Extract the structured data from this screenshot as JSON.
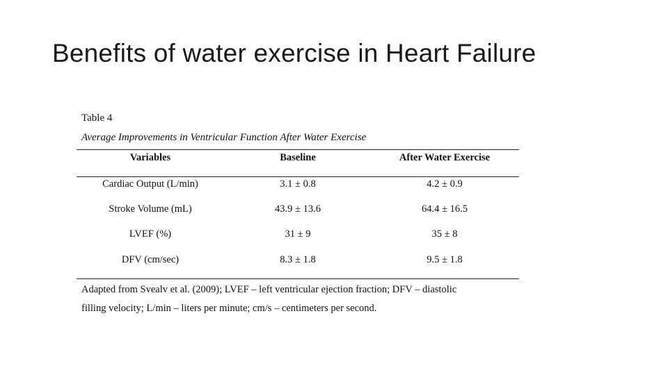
{
  "slide": {
    "title": "Benefits of water exercise in Heart Failure"
  },
  "table": {
    "number": "Table 4",
    "caption": "Average Improvements in Ventricular Function After Water Exercise",
    "headers": [
      "Variables",
      "Baseline",
      "After Water Exercise"
    ],
    "rows": [
      [
        "Cardiac Output (L/min)",
        "3.1 ± 0.8",
        "4.2 ± 0.9"
      ],
      [
        "Stroke Volume (mL)",
        "43.9 ± 13.6",
        "64.4 ± 16.5"
      ],
      [
        "LVEF (%)",
        "31 ± 9",
        "35 ± 8"
      ],
      [
        "DFV (cm/sec)",
        "8.3 ± 1.8",
        "9.5 ± 1.8"
      ]
    ],
    "note_lines": [
      "Adapted from Svealv et al. (2009); LVEF – left ventricular ejection fraction; DFV – diastolic",
      "filling velocity; L/min – liters per minute; cm/s – centimeters per second."
    ]
  }
}
